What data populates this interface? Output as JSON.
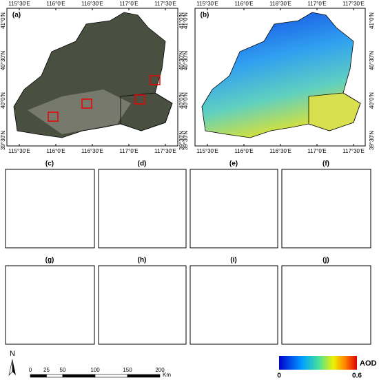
{
  "panel_labels": [
    "(a)",
    "(b)",
    "(c)",
    "(d)",
    "(e)",
    "(f)",
    "(g)",
    "(h)",
    "(i)",
    "(j)"
  ],
  "longitude_labels": [
    "115°30'E",
    "116°0'E",
    "116°30'E",
    "117°0'E",
    "117°30'E"
  ],
  "latitude_labels": [
    "41°0'N",
    "40°30'N",
    "40°0'N",
    "39°30'N"
  ],
  "north_label": "N",
  "scale_bar": {
    "ticks": [
      0,
      25,
      50,
      100,
      150,
      200
    ],
    "unit": "Km"
  },
  "colorbar": {
    "title": "AOD",
    "min": 0,
    "max": 0.6
  }
}
